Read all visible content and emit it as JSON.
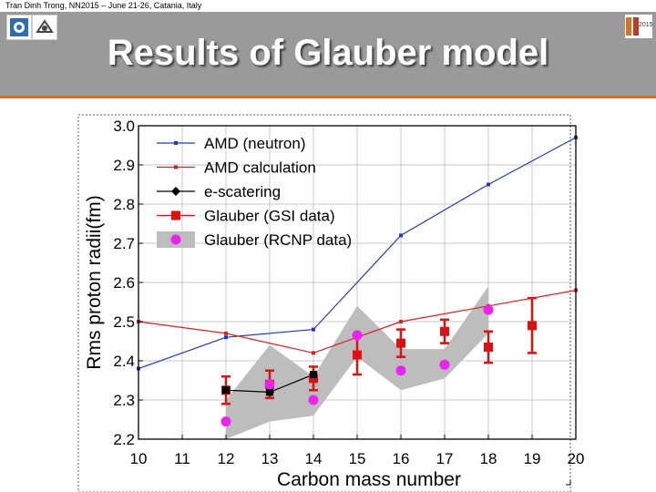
{
  "header": {
    "citation": "Tran Dinh Trong, NN2015 – June 21-26, Catania, Italy",
    "title": "Results of Glauber model",
    "right_logo_text": "2015"
  },
  "chart_data": {
    "type": "line",
    "xlabel": "Carbon mass number",
    "ylabel": "Rms proton radii(fm)",
    "xlim": [
      10,
      20
    ],
    "ylim": [
      2.2,
      3.0
    ],
    "x_ticks": [
      "10",
      "11",
      "12",
      "13",
      "14",
      "15",
      "16",
      "17",
      "18",
      "19",
      "20"
    ],
    "y_ticks": [
      "2.2",
      "2.3",
      "2.4",
      "2.5",
      "2.6",
      "2.7",
      "2.8",
      "2.9",
      "3.0"
    ],
    "grid": true,
    "legend_position": "top-left",
    "series": [
      {
        "name": "AMD (neutron)",
        "color": "#1f3cb8",
        "marker": "small-square",
        "x": [
          10,
          12,
          14,
          16,
          18,
          20
        ],
        "y": [
          2.38,
          2.46,
          2.48,
          2.72,
          2.85,
          2.97
        ]
      },
      {
        "name": "AMD calculation",
        "color": "#d82020",
        "marker": "small-square",
        "x": [
          10,
          12,
          14,
          16,
          18,
          20
        ],
        "y": [
          2.5,
          2.47,
          2.42,
          2.5,
          2.54,
          2.58
        ]
      },
      {
        "name": "e-scatering",
        "color": "#000000",
        "marker": "diamond",
        "x": [
          12,
          13,
          14
        ],
        "y": [
          2.325,
          2.32,
          2.365
        ]
      },
      {
        "name": "Glauber (GSI data)",
        "color": "#dd1111",
        "marker": "square-errorbar",
        "points": [
          {
            "x": 12,
            "y": 2.325,
            "err": 0.035
          },
          {
            "x": 13,
            "y": 2.34,
            "err": 0.035
          },
          {
            "x": 14,
            "y": 2.355,
            "err": 0.03
          },
          {
            "x": 15,
            "y": 2.415,
            "err": 0.05
          },
          {
            "x": 16,
            "y": 2.445,
            "err": 0.035
          },
          {
            "x": 17,
            "y": 2.475,
            "err": 0.03
          },
          {
            "x": 18,
            "y": 2.435,
            "err": 0.04
          },
          {
            "x": 19,
            "y": 2.49,
            "err": 0.07
          }
        ]
      },
      {
        "name": "Glauber (RCNP data)",
        "color": "#ee22ee",
        "marker": "circle-band",
        "points": [
          {
            "x": 12,
            "y": 2.245
          },
          {
            "x": 13,
            "y": 2.34
          },
          {
            "x": 14,
            "y": 2.3
          },
          {
            "x": 15,
            "y": 2.465
          },
          {
            "x": 16,
            "y": 2.375
          },
          {
            "x": 17,
            "y": 2.39
          },
          {
            "x": 18,
            "y": 2.53
          }
        ],
        "band_upper": [
          {
            "x": 12,
            "y": 2.3
          },
          {
            "x": 13,
            "y": 2.44
          },
          {
            "x": 14,
            "y": 2.36
          },
          {
            "x": 15,
            "y": 2.54
          },
          {
            "x": 16,
            "y": 2.43
          },
          {
            "x": 17,
            "y": 2.43
          },
          {
            "x": 18,
            "y": 2.59
          }
        ],
        "band_lower": [
          {
            "x": 12,
            "y": 2.2
          },
          {
            "x": 13,
            "y": 2.245
          },
          {
            "x": 14,
            "y": 2.26
          },
          {
            "x": 15,
            "y": 2.41
          },
          {
            "x": 16,
            "y": 2.325
          },
          {
            "x": 17,
            "y": 2.355
          },
          {
            "x": 18,
            "y": 2.47
          }
        ]
      }
    ]
  }
}
